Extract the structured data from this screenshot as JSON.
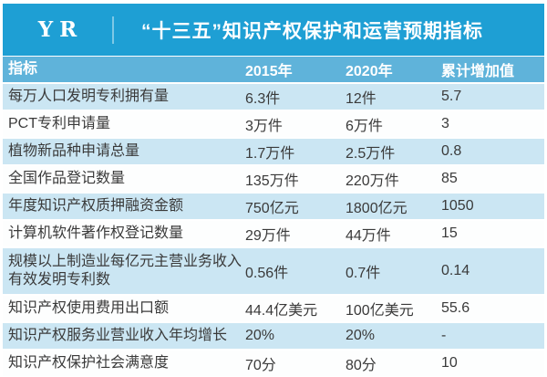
{
  "banner": {
    "logo_text": "YR",
    "title": "“十三五”知识产权保护和运营预期指标"
  },
  "colors": {
    "banner_bg": "#1e9fd4",
    "header_row_bg": "#5fb3da",
    "alt_row_bg": "#cbe6f3",
    "white_row_bg": "#fdfefe",
    "header_text": "#ffffff",
    "body_text": "#3a3a3a"
  },
  "chart_data": {
    "type": "table",
    "title": "“十三五”知识产权保护和运营预期指标",
    "columns": [
      "指标",
      "2015年",
      "2020年",
      "累计增加值"
    ],
    "rows": [
      [
        "每万人口发明专利拥有量",
        "6.3件",
        "12件",
        "5.7"
      ],
      [
        "PCT专利申请量",
        "3万件",
        "6万件",
        "3"
      ],
      [
        "植物新品种申请总量",
        "1.7万件",
        "2.5万件",
        "0.8"
      ],
      [
        "全国作品登记数量",
        "135万件",
        "220万件",
        "85"
      ],
      [
        "年度知识产权质押融资金额",
        "750亿元",
        "1800亿元",
        "1050"
      ],
      [
        "计算机软件著作权登记数量",
        "29万件",
        "44万件",
        "15"
      ],
      [
        "规模以上制造业每亿元主营业务收入有效发明专利数",
        "0.56件",
        "0.7件",
        "0.14"
      ],
      [
        "知识产权使用费用出口额",
        "44.4亿美元",
        "100亿美元",
        "55.6"
      ],
      [
        "知识产权服务业营业收入年均增长",
        "20%",
        "20%",
        "-"
      ],
      [
        "知识产权保护社会满意度",
        "70分",
        "80分",
        "10"
      ]
    ]
  }
}
